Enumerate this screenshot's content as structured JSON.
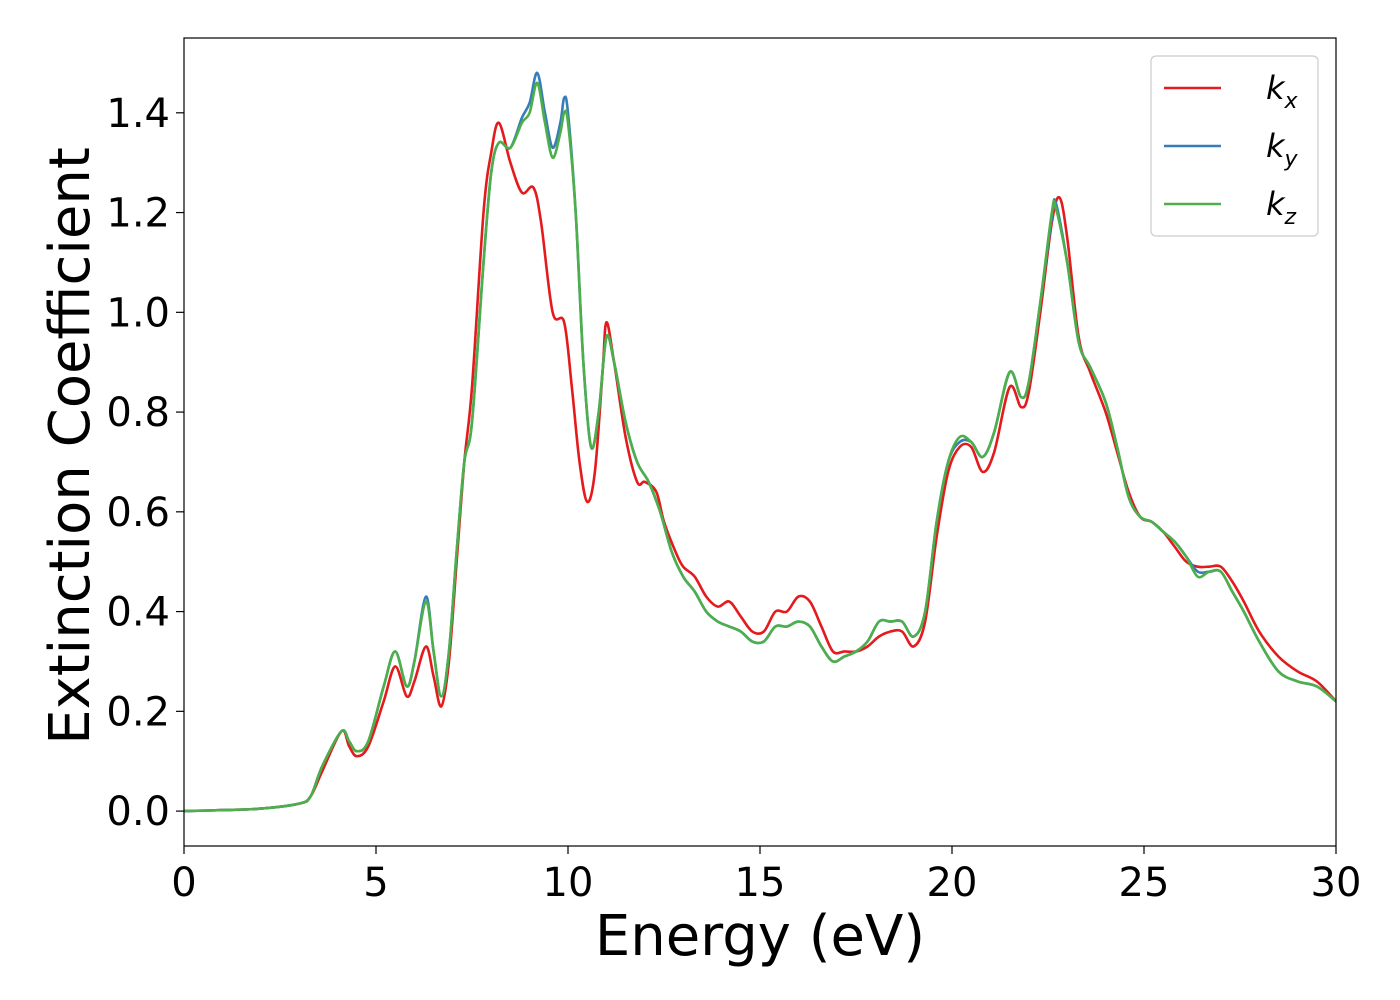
{
  "chart_data": {
    "type": "line",
    "xlabel": "Energy (eV)",
    "ylabel": "Extinction Coefficient",
    "xlim": [
      0,
      30
    ],
    "ylim": [
      -0.07,
      1.55
    ],
    "xticks": [
      "0",
      "5",
      "10",
      "15",
      "20",
      "25",
      "30"
    ],
    "yticks": [
      "0.0",
      "0.2",
      "0.4",
      "0.6",
      "0.8",
      "1.0",
      "1.2",
      "1.4"
    ],
    "grid": false,
    "legend_position": "top-right",
    "series": [
      {
        "name": "k_x",
        "label_main": "k",
        "label_sub": "x",
        "color": "#e41a1c",
        "points": [
          [
            0,
            0.0
          ],
          [
            1,
            0.002
          ],
          [
            2,
            0.005
          ],
          [
            3,
            0.015
          ],
          [
            3.3,
            0.03
          ],
          [
            3.6,
            0.08
          ],
          [
            4.1,
            0.16
          ],
          [
            4.3,
            0.13
          ],
          [
            4.5,
            0.11
          ],
          [
            4.8,
            0.13
          ],
          [
            5.2,
            0.22
          ],
          [
            5.5,
            0.29
          ],
          [
            5.8,
            0.23
          ],
          [
            6.0,
            0.26
          ],
          [
            6.3,
            0.33
          ],
          [
            6.5,
            0.27
          ],
          [
            6.7,
            0.21
          ],
          [
            6.9,
            0.3
          ],
          [
            7.1,
            0.5
          ],
          [
            7.3,
            0.7
          ],
          [
            7.5,
            0.85
          ],
          [
            7.8,
            1.2
          ],
          [
            8.0,
            1.32
          ],
          [
            8.2,
            1.38
          ],
          [
            8.5,
            1.3
          ],
          [
            8.8,
            1.24
          ],
          [
            9.1,
            1.25
          ],
          [
            9.3,
            1.18
          ],
          [
            9.6,
            1.0
          ],
          [
            9.9,
            0.98
          ],
          [
            10.1,
            0.85
          ],
          [
            10.3,
            0.7
          ],
          [
            10.5,
            0.62
          ],
          [
            10.7,
            0.68
          ],
          [
            10.9,
            0.88
          ],
          [
            11.0,
            0.98
          ],
          [
            11.2,
            0.9
          ],
          [
            11.5,
            0.75
          ],
          [
            11.8,
            0.66
          ],
          [
            12.0,
            0.66
          ],
          [
            12.3,
            0.64
          ],
          [
            12.5,
            0.58
          ],
          [
            12.8,
            0.52
          ],
          [
            13.0,
            0.49
          ],
          [
            13.3,
            0.47
          ],
          [
            13.6,
            0.43
          ],
          [
            13.9,
            0.41
          ],
          [
            14.2,
            0.42
          ],
          [
            14.5,
            0.39
          ],
          [
            14.8,
            0.36
          ],
          [
            15.1,
            0.36
          ],
          [
            15.4,
            0.4
          ],
          [
            15.7,
            0.4
          ],
          [
            16.0,
            0.43
          ],
          [
            16.3,
            0.42
          ],
          [
            16.6,
            0.37
          ],
          [
            16.9,
            0.32
          ],
          [
            17.2,
            0.32
          ],
          [
            17.5,
            0.32
          ],
          [
            17.8,
            0.33
          ],
          [
            18.1,
            0.35
          ],
          [
            18.4,
            0.36
          ],
          [
            18.7,
            0.36
          ],
          [
            19.0,
            0.33
          ],
          [
            19.3,
            0.38
          ],
          [
            19.6,
            0.55
          ],
          [
            19.9,
            0.68
          ],
          [
            20.2,
            0.73
          ],
          [
            20.5,
            0.73
          ],
          [
            20.8,
            0.68
          ],
          [
            21.1,
            0.72
          ],
          [
            21.5,
            0.85
          ],
          [
            21.8,
            0.81
          ],
          [
            22.0,
            0.84
          ],
          [
            22.3,
            1.0
          ],
          [
            22.6,
            1.18
          ],
          [
            22.8,
            1.23
          ],
          [
            23.0,
            1.15
          ],
          [
            23.3,
            0.95
          ],
          [
            23.6,
            0.88
          ],
          [
            24.0,
            0.8
          ],
          [
            24.3,
            0.72
          ],
          [
            24.6,
            0.64
          ],
          [
            24.9,
            0.59
          ],
          [
            25.2,
            0.58
          ],
          [
            25.5,
            0.56
          ],
          [
            25.8,
            0.53
          ],
          [
            26.1,
            0.5
          ],
          [
            26.4,
            0.49
          ],
          [
            26.7,
            0.49
          ],
          [
            27.0,
            0.49
          ],
          [
            27.3,
            0.46
          ],
          [
            27.6,
            0.42
          ],
          [
            28.0,
            0.36
          ],
          [
            28.5,
            0.31
          ],
          [
            29.0,
            0.28
          ],
          [
            29.5,
            0.26
          ],
          [
            30.0,
            0.22
          ]
        ]
      },
      {
        "name": "k_y",
        "label_main": "k",
        "label_sub": "y",
        "color": "#377eb8",
        "points": [
          [
            0,
            0.0
          ],
          [
            1,
            0.002
          ],
          [
            2,
            0.005
          ],
          [
            3,
            0.015
          ],
          [
            3.3,
            0.03
          ],
          [
            3.6,
            0.09
          ],
          [
            4.1,
            0.16
          ],
          [
            4.3,
            0.14
          ],
          [
            4.5,
            0.12
          ],
          [
            4.8,
            0.14
          ],
          [
            5.2,
            0.25
          ],
          [
            5.5,
            0.32
          ],
          [
            5.8,
            0.25
          ],
          [
            6.0,
            0.3
          ],
          [
            6.3,
            0.43
          ],
          [
            6.5,
            0.32
          ],
          [
            6.7,
            0.23
          ],
          [
            6.9,
            0.32
          ],
          [
            7.1,
            0.52
          ],
          [
            7.3,
            0.7
          ],
          [
            7.5,
            0.78
          ],
          [
            7.8,
            1.1
          ],
          [
            8.0,
            1.28
          ],
          [
            8.2,
            1.34
          ],
          [
            8.5,
            1.33
          ],
          [
            8.8,
            1.39
          ],
          [
            9.0,
            1.42
          ],
          [
            9.2,
            1.48
          ],
          [
            9.4,
            1.4
          ],
          [
            9.6,
            1.33
          ],
          [
            9.8,
            1.38
          ],
          [
            9.9,
            1.43
          ],
          [
            10.0,
            1.4
          ],
          [
            10.2,
            1.2
          ],
          [
            10.4,
            0.9
          ],
          [
            10.6,
            0.73
          ],
          [
            10.8,
            0.8
          ],
          [
            11.0,
            0.95
          ],
          [
            11.2,
            0.9
          ],
          [
            11.5,
            0.78
          ],
          [
            11.8,
            0.7
          ],
          [
            12.1,
            0.66
          ],
          [
            12.4,
            0.6
          ],
          [
            12.7,
            0.52
          ],
          [
            13.0,
            0.47
          ],
          [
            13.3,
            0.44
          ],
          [
            13.6,
            0.4
          ],
          [
            13.9,
            0.38
          ],
          [
            14.2,
            0.37
          ],
          [
            14.5,
            0.36
          ],
          [
            14.8,
            0.34
          ],
          [
            15.1,
            0.34
          ],
          [
            15.4,
            0.37
          ],
          [
            15.7,
            0.37
          ],
          [
            16.0,
            0.38
          ],
          [
            16.3,
            0.37
          ],
          [
            16.6,
            0.33
          ],
          [
            16.9,
            0.3
          ],
          [
            17.2,
            0.31
          ],
          [
            17.5,
            0.32
          ],
          [
            17.8,
            0.34
          ],
          [
            18.1,
            0.38
          ],
          [
            18.4,
            0.38
          ],
          [
            18.7,
            0.38
          ],
          [
            19.0,
            0.35
          ],
          [
            19.3,
            0.4
          ],
          [
            19.6,
            0.58
          ],
          [
            19.9,
            0.7
          ],
          [
            20.2,
            0.74
          ],
          [
            20.5,
            0.74
          ],
          [
            20.8,
            0.71
          ],
          [
            21.1,
            0.76
          ],
          [
            21.5,
            0.88
          ],
          [
            21.8,
            0.83
          ],
          [
            22.0,
            0.86
          ],
          [
            22.3,
            1.02
          ],
          [
            22.6,
            1.19
          ],
          [
            22.7,
            1.22
          ],
          [
            23.0,
            1.1
          ],
          [
            23.3,
            0.94
          ],
          [
            23.6,
            0.89
          ],
          [
            24.0,
            0.82
          ],
          [
            24.3,
            0.73
          ],
          [
            24.6,
            0.63
          ],
          [
            24.9,
            0.59
          ],
          [
            25.2,
            0.58
          ],
          [
            25.5,
            0.56
          ],
          [
            25.8,
            0.54
          ],
          [
            26.1,
            0.51
          ],
          [
            26.4,
            0.48
          ],
          [
            26.7,
            0.48
          ],
          [
            27.0,
            0.48
          ],
          [
            27.3,
            0.44
          ],
          [
            27.6,
            0.4
          ],
          [
            28.0,
            0.34
          ],
          [
            28.5,
            0.28
          ],
          [
            29.0,
            0.26
          ],
          [
            29.5,
            0.25
          ],
          [
            30.0,
            0.22
          ]
        ]
      },
      {
        "name": "k_z",
        "label_main": "k",
        "label_sub": "z",
        "color": "#4daf4a",
        "points": [
          [
            0,
            0.0
          ],
          [
            1,
            0.002
          ],
          [
            2,
            0.005
          ],
          [
            3,
            0.015
          ],
          [
            3.3,
            0.03
          ],
          [
            3.6,
            0.09
          ],
          [
            4.1,
            0.16
          ],
          [
            4.3,
            0.14
          ],
          [
            4.5,
            0.12
          ],
          [
            4.8,
            0.14
          ],
          [
            5.2,
            0.25
          ],
          [
            5.5,
            0.32
          ],
          [
            5.8,
            0.25
          ],
          [
            6.0,
            0.3
          ],
          [
            6.3,
            0.42
          ],
          [
            6.5,
            0.32
          ],
          [
            6.7,
            0.23
          ],
          [
            6.9,
            0.32
          ],
          [
            7.1,
            0.52
          ],
          [
            7.3,
            0.7
          ],
          [
            7.5,
            0.78
          ],
          [
            7.8,
            1.1
          ],
          [
            8.0,
            1.28
          ],
          [
            8.2,
            1.34
          ],
          [
            8.5,
            1.33
          ],
          [
            8.8,
            1.38
          ],
          [
            9.0,
            1.4
          ],
          [
            9.2,
            1.46
          ],
          [
            9.4,
            1.38
          ],
          [
            9.6,
            1.31
          ],
          [
            9.8,
            1.36
          ],
          [
            9.9,
            1.4
          ],
          [
            10.0,
            1.38
          ],
          [
            10.2,
            1.2
          ],
          [
            10.4,
            0.9
          ],
          [
            10.6,
            0.73
          ],
          [
            10.8,
            0.8
          ],
          [
            11.0,
            0.95
          ],
          [
            11.2,
            0.9
          ],
          [
            11.5,
            0.78
          ],
          [
            11.8,
            0.7
          ],
          [
            12.1,
            0.66
          ],
          [
            12.4,
            0.6
          ],
          [
            12.7,
            0.52
          ],
          [
            13.0,
            0.47
          ],
          [
            13.3,
            0.44
          ],
          [
            13.6,
            0.4
          ],
          [
            13.9,
            0.38
          ],
          [
            14.2,
            0.37
          ],
          [
            14.5,
            0.36
          ],
          [
            14.8,
            0.34
          ],
          [
            15.1,
            0.34
          ],
          [
            15.4,
            0.37
          ],
          [
            15.7,
            0.37
          ],
          [
            16.0,
            0.38
          ],
          [
            16.3,
            0.37
          ],
          [
            16.6,
            0.33
          ],
          [
            16.9,
            0.3
          ],
          [
            17.2,
            0.31
          ],
          [
            17.5,
            0.32
          ],
          [
            17.8,
            0.34
          ],
          [
            18.1,
            0.38
          ],
          [
            18.4,
            0.38
          ],
          [
            18.7,
            0.38
          ],
          [
            19.0,
            0.35
          ],
          [
            19.3,
            0.4
          ],
          [
            19.6,
            0.58
          ],
          [
            19.9,
            0.7
          ],
          [
            20.2,
            0.75
          ],
          [
            20.5,
            0.74
          ],
          [
            20.8,
            0.71
          ],
          [
            21.1,
            0.76
          ],
          [
            21.5,
            0.88
          ],
          [
            21.8,
            0.83
          ],
          [
            22.0,
            0.86
          ],
          [
            22.3,
            1.02
          ],
          [
            22.6,
            1.2
          ],
          [
            22.7,
            1.21
          ],
          [
            23.0,
            1.1
          ],
          [
            23.3,
            0.94
          ],
          [
            23.6,
            0.89
          ],
          [
            24.0,
            0.82
          ],
          [
            24.3,
            0.73
          ],
          [
            24.6,
            0.63
          ],
          [
            24.9,
            0.59
          ],
          [
            25.2,
            0.58
          ],
          [
            25.5,
            0.56
          ],
          [
            25.8,
            0.54
          ],
          [
            26.1,
            0.51
          ],
          [
            26.4,
            0.47
          ],
          [
            26.7,
            0.48
          ],
          [
            27.0,
            0.48
          ],
          [
            27.3,
            0.44
          ],
          [
            27.6,
            0.4
          ],
          [
            28.0,
            0.34
          ],
          [
            28.5,
            0.28
          ],
          [
            29.0,
            0.26
          ],
          [
            29.5,
            0.25
          ],
          [
            30.0,
            0.22
          ]
        ]
      }
    ]
  }
}
